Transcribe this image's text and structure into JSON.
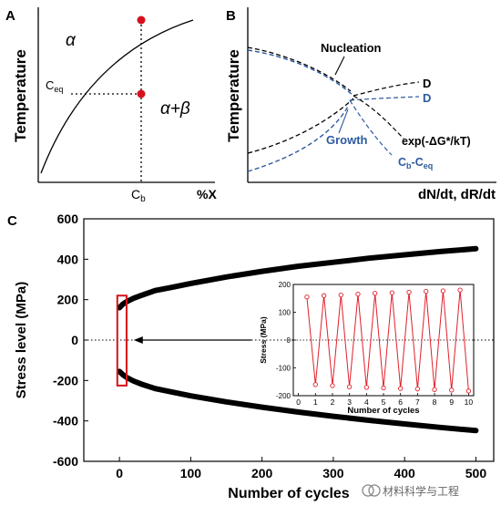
{
  "panels": {
    "A": {
      "letter": "A",
      "ylabel": "Temperature",
      "label_alpha": "α",
      "label_alpha_beta": "α+β",
      "ceq_label": "C",
      "ceq_sub": "eq",
      "cb_label": "C",
      "cb_sub": "b",
      "x_unit": "%X",
      "marker_color": "#d6101c"
    },
    "B": {
      "letter": "B",
      "ylabel": "Temperature",
      "xlabel": "dN/dt, dR/dt",
      "nucleation": "Nucleation",
      "growth": "Growth",
      "d_black": "D",
      "d_blue": "D",
      "exp_text": "exp(-ΔG*/kT)",
      "cb_ceq_text": "C",
      "cb_ceq_sub1": "b",
      "cb_ceq_mid": "-C",
      "cb_ceq_sub2": "eq",
      "accent_blue": "#2c5aa0"
    },
    "C": {
      "letter": "C"
    }
  },
  "chart_data": [
    {
      "type": "line",
      "title": "",
      "xlabel": "Number of cycles",
      "ylabel": "Stress level (MPa)",
      "xlim": [
        -50,
        525
      ],
      "ylim": [
        -600,
        600
      ],
      "xticks": [
        "0",
        "100",
        "200",
        "300",
        "400",
        "500"
      ],
      "yticks": [
        "600",
        "400",
        "200",
        "0",
        "-200",
        "-400",
        "-600"
      ],
      "zero_line": "dotted",
      "series": [
        {
          "x": [
            0,
            5,
            10,
            20,
            30,
            50,
            75,
            100,
            150,
            200,
            250,
            300,
            350,
            400,
            450,
            500
          ],
          "y": [
            160,
            178,
            190,
            207,
            220,
            245,
            262,
            280,
            312,
            340,
            365,
            385,
            405,
            422,
            438,
            452
          ]
        },
        {
          "x": [
            0,
            5,
            10,
            20,
            30,
            50,
            75,
            100,
            150,
            200,
            250,
            300,
            350,
            400,
            450,
            500
          ],
          "y": [
            -155,
            -172,
            -185,
            -203,
            -217,
            -240,
            -258,
            -276,
            -306,
            -332,
            -356,
            -377,
            -397,
            -415,
            -432,
            -448
          ]
        }
      ],
      "highlight_box": {
        "x": [
          -3,
          10
        ],
        "y": [
          -225,
          220
        ],
        "color": "#d6101c"
      },
      "arrow": {
        "from_x": 185,
        "to_x": 20,
        "y": 0
      }
    },
    {
      "type": "line",
      "title": "",
      "xlabel": "Number of cycles",
      "ylabel": "Stress (MPa)",
      "xlim": [
        -0.3,
        10.3
      ],
      "ylim": [
        -200,
        200
      ],
      "xticks": [
        "0",
        "1",
        "2",
        "3",
        "4",
        "5",
        "6",
        "7",
        "8",
        "9",
        "10"
      ],
      "yticks": [
        "200",
        "100",
        "0",
        "-100",
        "-200"
      ],
      "color": "#e0202a",
      "series": [
        {
          "x": [
            0.5,
            1.0,
            1.5,
            2.0,
            2.5,
            3.0,
            3.5,
            4.0,
            4.5,
            5.0,
            5.5,
            6.0,
            6.5,
            7.0,
            7.5,
            8.0,
            8.5,
            9.0,
            9.5,
            10.0
          ],
          "y": [
            155,
            -160,
            160,
            -164,
            162,
            -168,
            165,
            -170,
            168,
            -172,
            170,
            -174,
            172,
            -176,
            175,
            -178,
            177,
            -180,
            180,
            -183
          ]
        }
      ]
    }
  ],
  "watermark": "材料科学与工程"
}
